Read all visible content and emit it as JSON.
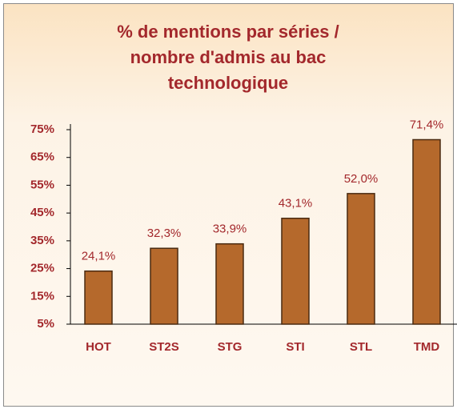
{
  "chart_data": {
    "type": "bar",
    "title": "% de mentions par séries / nombre d'admis au bac technologique",
    "categories": [
      "HOT",
      "ST2S",
      "STG",
      "STI",
      "STL",
      "TMD"
    ],
    "values": [
      24.1,
      32.3,
      33.9,
      43.1,
      52.0,
      71.4
    ],
    "value_labels": [
      "24,1%",
      "32,3%",
      "33,9%",
      "43,1%",
      "52,0%",
      "71,4%"
    ],
    "color": "#b5692c",
    "ylim": [
      5,
      75
    ],
    "yticks": [
      {
        "value": 5,
        "label": "5%"
      },
      {
        "value": 15,
        "label": "15%"
      },
      {
        "value": 25,
        "label": "25%"
      },
      {
        "value": 35,
        "label": "35%"
      },
      {
        "value": 45,
        "label": "45%"
      },
      {
        "value": 55,
        "label": "55%"
      },
      {
        "value": 65,
        "label": "65%"
      },
      {
        "value": 75,
        "label": "75%"
      }
    ],
    "grid": false
  }
}
